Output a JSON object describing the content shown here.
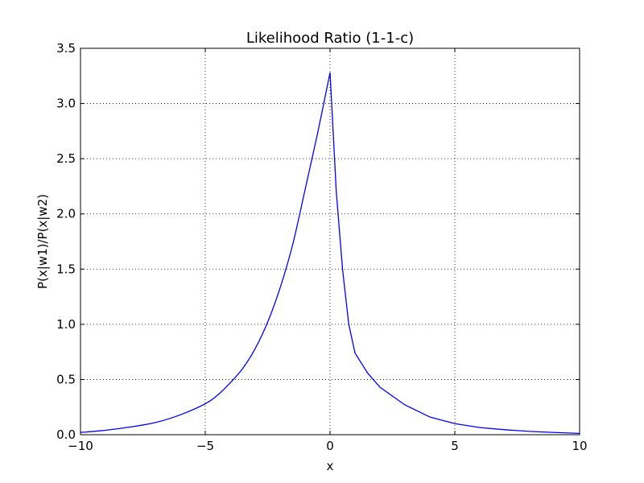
{
  "chart_data": {
    "type": "line",
    "title": "Likelihood Ratio (1-1-c)",
    "xlabel": "x",
    "ylabel": "P(x|w1)/P(x|w2)",
    "xlim": [
      -10,
      10
    ],
    "ylim": [
      0,
      3.5
    ],
    "xticks": [
      -10,
      -5,
      0,
      5,
      10
    ],
    "xtick_labels": [
      "−10",
      "−5",
      "0",
      "5",
      "10"
    ],
    "yticks": [
      0,
      0.5,
      1.0,
      1.5,
      2.0,
      2.5,
      3.0,
      3.5
    ],
    "ytick_labels": [
      "0.0",
      "0.5",
      "1.0",
      "1.5",
      "2.0",
      "2.5",
      "3.0",
      "3.5"
    ],
    "grid": true,
    "line_color": "#0000ff",
    "series": [
      {
        "x": [
          -10,
          -9,
          -8,
          -7,
          -6,
          -5,
          -4.5,
          -4,
          -3.5,
          -3,
          -2.5,
          -2,
          -1.5,
          -1,
          -0.5,
          0,
          0.25,
          0.5,
          0.75,
          1,
          1.5,
          2,
          3,
          4,
          5,
          6,
          7,
          8,
          9,
          10
        ],
        "y": [
          0.02,
          0.04,
          0.07,
          0.11,
          0.18,
          0.28,
          0.36,
          0.47,
          0.6,
          0.78,
          1.02,
          1.33,
          1.72,
          2.22,
          2.73,
          3.28,
          2.2,
          1.5,
          1.0,
          0.74,
          0.56,
          0.43,
          0.27,
          0.16,
          0.1,
          0.065,
          0.045,
          0.03,
          0.02,
          0.012
        ]
      }
    ]
  }
}
